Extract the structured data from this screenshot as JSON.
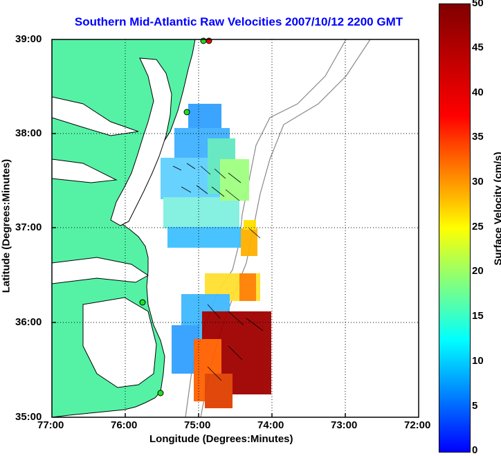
{
  "title": "Southern Mid-Atlantic Raw Velocities 2007/10/12 2200 GMT",
  "xlabel": "Longitude (Degrees:Minutes)",
  "ylabel": "Latitude (Degrees:Minutes)",
  "colorbar": {
    "label": "Surface Velocity (cm/s)",
    "ticks": [
      "0",
      "5",
      "10",
      "15",
      "20",
      "25",
      "30",
      "35",
      "40",
      "45",
      "50"
    ],
    "colormap": "jet"
  },
  "x_ticks": [
    "77:00",
    "76:00",
    "75:00",
    "74:00",
    "73:00",
    "72:00"
  ],
  "y_ticks": [
    "39:00",
    "38:00",
    "37:00",
    "36:00",
    "35:00"
  ],
  "colors": {
    "land": "#55f2a6",
    "coast": "#000000",
    "title": "#0000ff",
    "isobath": "#888888",
    "grid": "#000000"
  },
  "grid": "dotted",
  "stations": [
    "green",
    "green",
    "green",
    "green",
    "red"
  ]
}
